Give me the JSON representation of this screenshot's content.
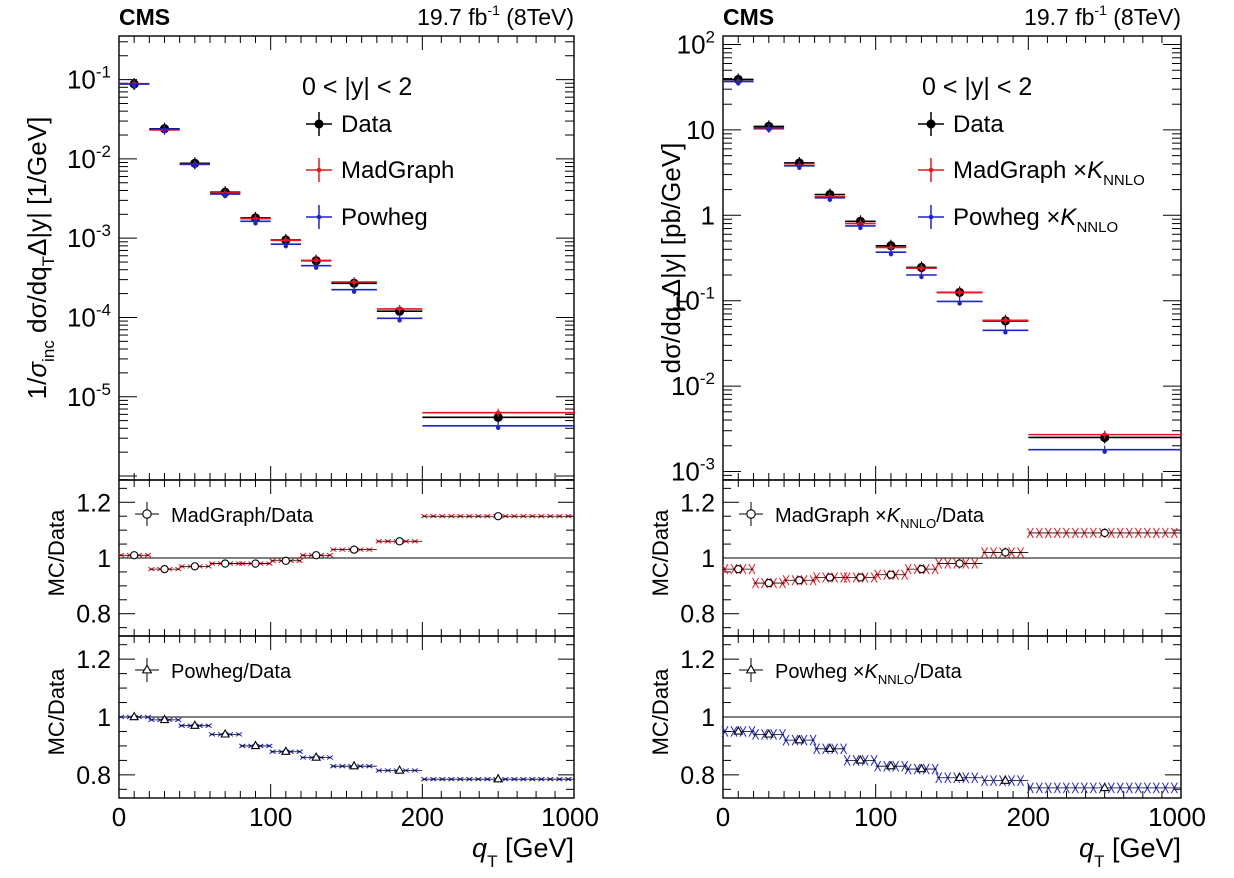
{
  "colors": {
    "data": "#000000",
    "madgraph": "#e8171e",
    "powheg": "#1f24c8"
  },
  "chart_data": [
    {
      "type": "scatter",
      "panel": "left",
      "experiment": "CMS",
      "lumi": {
        "value": "19.7 fb",
        "exp": "-1",
        "energy": " (8TeV)"
      },
      "region": "0 < |y| < 2",
      "xlabel": "q",
      "xlabel_sub": "T",
      "xlabel_unit": " [GeV]",
      "ylabel": "1/σ_inc dσ/dq_T Δ|y| [1/GeV]",
      "ylabel_parts": {
        "a": "1/",
        "sigma": "σ",
        "inc": "inc",
        "b": " dσ/dq",
        "T": "T",
        "c": "Δ|y| [1/GeV]"
      },
      "x_ticks": [
        "0",
        "100",
        "200",
        "1000"
      ],
      "y_tick_labels": [
        {
          "mant": "10",
          "exp": "-1",
          "logv": -1
        },
        {
          "mant": "10",
          "exp": "-2",
          "logv": -2
        },
        {
          "mant": "10",
          "exp": "-3",
          "logv": -3
        },
        {
          "mant": "10",
          "exp": "-4",
          "logv": -4
        },
        {
          "mant": "10",
          "exp": "-5",
          "logv": -5
        }
      ],
      "ylim_log10": [
        -6.05,
        -0.45
      ],
      "bins": [
        [
          0,
          20
        ],
        [
          20,
          40
        ],
        [
          40,
          60
        ],
        [
          60,
          80
        ],
        [
          80,
          100
        ],
        [
          100,
          120
        ],
        [
          120,
          140
        ],
        [
          140,
          170
        ],
        [
          170,
          200
        ],
        [
          200,
          1000
        ]
      ],
      "series": [
        {
          "name": "Data",
          "values": [
            0.088,
            0.024,
            0.0088,
            0.0038,
            0.0018,
            0.00095,
            0.00052,
            0.00027,
            0.00012,
            5.5e-06
          ]
        },
        {
          "name": "MadGraph",
          "values": [
            0.089,
            0.0232,
            0.0085,
            0.00372,
            0.00176,
            0.00094,
            0.000525,
            0.00028,
            0.000128,
            6.3e-06
          ]
        },
        {
          "name": "Powheg",
          "values": [
            0.088,
            0.0238,
            0.0086,
            0.0036,
            0.00163,
            0.00084,
            0.00045,
            0.000224,
            9.75e-05,
            4.3e-06
          ]
        }
      ],
      "legend": [
        "Data",
        "MadGraph",
        "Powheg"
      ],
      "ratio_panels": [
        {
          "ylabel": "MC/Data",
          "label": "MadGraph/Data",
          "color": "madgraph",
          "marker": "circle",
          "ylim": [
            0.72,
            1.28
          ],
          "y_ticks": [
            "0.8",
            "1",
            "1.2"
          ],
          "values": [
            1.01,
            0.96,
            0.97,
            0.98,
            0.98,
            0.99,
            1.01,
            1.03,
            1.06,
            1.15
          ],
          "band": 0.004
        },
        {
          "ylabel": "MC/Data",
          "label": "Powheg/Data",
          "color": "powheg",
          "marker": "triangle",
          "ylim": [
            0.72,
            1.28
          ],
          "y_ticks": [
            "0.8",
            "1",
            "1.2"
          ],
          "values": [
            1.0,
            0.99,
            0.97,
            0.94,
            0.9,
            0.88,
            0.86,
            0.83,
            0.815,
            0.785
          ],
          "band": 0.004
        }
      ]
    },
    {
      "type": "scatter",
      "panel": "right",
      "experiment": "CMS",
      "lumi": {
        "value": "19.7 fb",
        "exp": "-1",
        "energy": " (8TeV)"
      },
      "region": "0 < |y| < 2",
      "xlabel": "q",
      "xlabel_sub": "T",
      "xlabel_unit": " [GeV]",
      "ylabel": "dσ/dq_T Δ|y| [pb/GeV]",
      "ylabel_parts": {
        "a": "dσ/dq",
        "T": "T",
        "c": "Δ|y| [pb/GeV]"
      },
      "x_ticks": [
        "0",
        "100",
        "200",
        "1000"
      ],
      "y_tick_labels": [
        {
          "mant": "10",
          "exp": "2",
          "logv": 2
        },
        {
          "mant": "10",
          "exp": "",
          "logv": 1
        },
        {
          "mant": "1",
          "exp": "",
          "logv": 0
        },
        {
          "mant": "10",
          "exp": "-1",
          "logv": -1
        },
        {
          "mant": "10",
          "exp": "-2",
          "logv": -2
        },
        {
          "mant": "10",
          "exp": "-3",
          "logv": -3
        }
      ],
      "ylim_log10": [
        -3.1,
        2.1
      ],
      "bins": [
        [
          0,
          20
        ],
        [
          20,
          40
        ],
        [
          40,
          60
        ],
        [
          60,
          80
        ],
        [
          80,
          100
        ],
        [
          100,
          120
        ],
        [
          120,
          140
        ],
        [
          140,
          170
        ],
        [
          170,
          200
        ],
        [
          200,
          1000
        ]
      ],
      "series": [
        {
          "name": "Data",
          "values": [
            39,
            11,
            4.1,
            1.75,
            0.85,
            0.44,
            0.245,
            0.125,
            0.058,
            0.0025
          ]
        },
        {
          "name": "MadGraph ×K_NNLO",
          "values": [
            37,
            10.3,
            3.85,
            1.65,
            0.8,
            0.42,
            0.24,
            0.125,
            0.059,
            0.0027
          ]
        },
        {
          "name": "Powheg ×K_NNLO",
          "values": [
            37,
            10.6,
            3.8,
            1.6,
            0.75,
            0.37,
            0.2,
            0.098,
            0.045,
            0.0018
          ]
        }
      ],
      "legend": [
        "Data",
        "MadGraph ×K",
        "Powheg ×K"
      ],
      "legend_sub": "NNLO",
      "ratio_panels": [
        {
          "ylabel": "MC/Data",
          "label": "MadGraph ×K",
          "label_sub": "NNLO",
          "label_end": "/Data",
          "color": "madgraph",
          "marker": "circle",
          "ylim": [
            0.72,
            1.28
          ],
          "y_ticks": [
            "0.8",
            "1",
            "1.2"
          ],
          "values": [
            0.96,
            0.91,
            0.92,
            0.93,
            0.93,
            0.94,
            0.96,
            0.98,
            1.02,
            1.09
          ],
          "band": 0.018
        },
        {
          "ylabel": "MC/Data",
          "label": "Powheg ×K",
          "label_sub": "NNLO",
          "label_end": "/Data",
          "color": "powheg",
          "marker": "triangle",
          "ylim": [
            0.72,
            1.28
          ],
          "y_ticks": [
            "0.8",
            "1",
            "1.2"
          ],
          "values": [
            0.95,
            0.94,
            0.92,
            0.89,
            0.85,
            0.83,
            0.82,
            0.79,
            0.78,
            0.755
          ],
          "band": 0.018
        }
      ]
    }
  ]
}
